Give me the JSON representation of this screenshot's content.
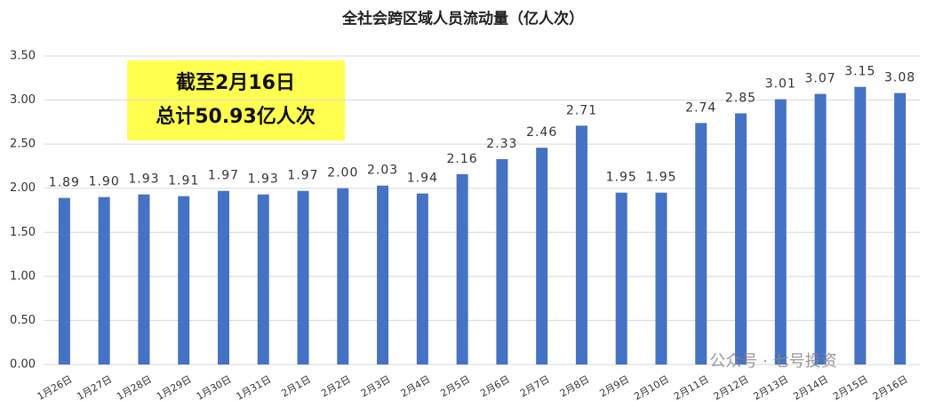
{
  "chart_data": {
    "type": "bar",
    "title": "全社会跨区域人员流动量（亿人次）",
    "categories": [
      "1月26日",
      "1月27日",
      "1月28日",
      "1月29日",
      "1月30日",
      "1月31日",
      "2月1日",
      "2月2日",
      "2月3日",
      "2月4日",
      "2月5日",
      "2月6日",
      "2月7日",
      "2月8日",
      "2月9日",
      "2月10日",
      "2月11日",
      "2月12日",
      "2月13日",
      "2月14日",
      "2月15日",
      "2月16日"
    ],
    "values": [
      1.89,
      1.9,
      1.93,
      1.91,
      1.97,
      1.93,
      1.97,
      2.0,
      2.03,
      1.94,
      2.16,
      2.33,
      2.46,
      2.71,
      1.95,
      1.95,
      2.74,
      2.85,
      3.01,
      3.07,
      3.15,
      3.08
    ],
    "value_labels": [
      "1.89",
      "1.90",
      "1.93",
      "1.91",
      "1.97",
      "1.93",
      "1.97",
      "2.00",
      "2.03",
      "1.94",
      "2.16",
      "2.33",
      "2.46",
      "2.71",
      "1.95",
      "1.95",
      "2.74",
      "2.85",
      "3.01",
      "3.07",
      "3.15",
      "3.08"
    ],
    "color": "#4472c4",
    "ylim": [
      0,
      3.5
    ],
    "yticks": [
      {
        "value": 0,
        "label": "0.00"
      },
      {
        "value": 0.5,
        "label": "0.50"
      },
      {
        "value": 1,
        "label": "1.00"
      },
      {
        "value": 1.5,
        "label": "1.50"
      },
      {
        "value": 2,
        "label": "2.00"
      },
      {
        "value": 2.5,
        "label": "2.50"
      },
      {
        "value": 3,
        "label": "3.00"
      },
      {
        "value": 3.5,
        "label": "3.50"
      }
    ],
    "grid": true,
    "annotation": [
      "截至2月16日",
      "总计50.93亿人次"
    ],
    "watermark": "公众号 · 七号投资"
  }
}
